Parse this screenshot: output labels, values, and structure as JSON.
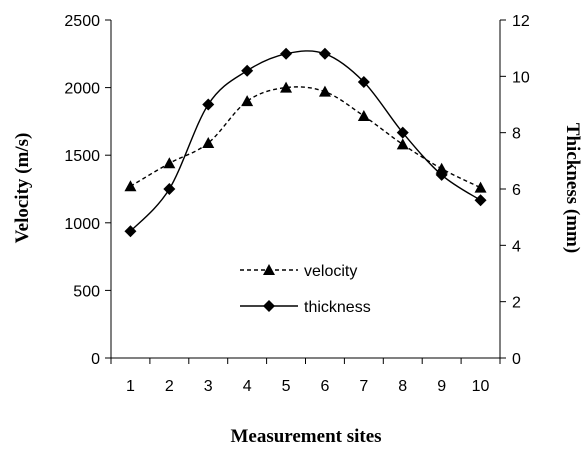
{
  "chart_data": {
    "type": "line",
    "xlabel": "Measurement  sites",
    "ylabel": "Velocity (m/s)",
    "y2label": "Thickness (mm)",
    "categories": [
      "1",
      "2",
      "3",
      "4",
      "5",
      "6",
      "7",
      "8",
      "9",
      "10"
    ],
    "ylim": [
      0,
      2500
    ],
    "y_ticks": [
      0,
      500,
      1000,
      1500,
      2000,
      2500
    ],
    "y2lim": [
      0,
      12
    ],
    "y2_ticks": [
      0,
      2,
      4,
      6,
      8,
      10,
      12
    ],
    "grid": false,
    "legend_position": "center",
    "series": [
      {
        "name": "velocity",
        "axis": "left",
        "marker": "triangle",
        "line_style": "dashed",
        "color": "#000000",
        "values": [
          1270,
          1440,
          1590,
          1900,
          2000,
          1970,
          1790,
          1580,
          1400,
          1260
        ]
      },
      {
        "name": "thickness",
        "axis": "right",
        "marker": "diamond",
        "line_style": "solid",
        "color": "#000000",
        "values": [
          4.5,
          6.0,
          9.0,
          10.2,
          10.8,
          10.8,
          9.8,
          8.0,
          6.5,
          5.6
        ]
      }
    ]
  }
}
